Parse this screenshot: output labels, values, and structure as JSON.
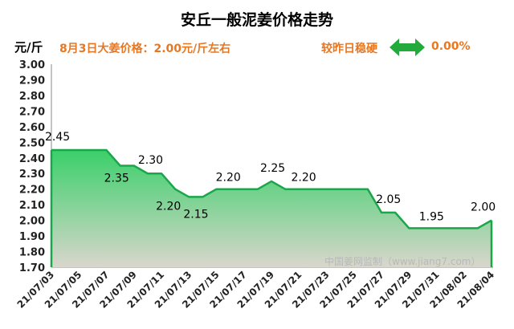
{
  "header": {
    "title": "安丘一般泥姜价格走势",
    "unit": "元/斤",
    "price_note": "8月3日大姜价格：2.00元/斤左右",
    "compare_label": "较昨日稳硬",
    "change_value": "0.00%",
    "arrow_icon": "double-arrow-icon",
    "accent_color": "#e87722",
    "arrow_color": "#22aa3c"
  },
  "watermark": "中国姜网监制（www.jiang7.com）",
  "chart_data": {
    "type": "area",
    "title": "安丘一般泥姜价格走势",
    "ylabel": "元/斤",
    "ylim": [
      1.7,
      3.0
    ],
    "yticks": [
      "1.70",
      "1.80",
      "1.90",
      "2.00",
      "2.10",
      "2.20",
      "2.30",
      "2.40",
      "2.50",
      "2.60",
      "2.70",
      "2.80",
      "2.90",
      "3.00"
    ],
    "xticks": [
      "21/07/03",
      "21/07/05",
      "21/07/07",
      "21/07/09",
      "21/07/11",
      "21/07/13",
      "21/07/15",
      "21/07/17",
      "21/07/19",
      "21/07/21",
      "21/07/23",
      "21/07/25",
      "21/07/27",
      "21/07/29",
      "21/07/31",
      "21/08/02",
      "21/08/04"
    ],
    "x": [
      "07/03",
      "07/04",
      "07/05",
      "07/06",
      "07/07",
      "07/08",
      "07/09",
      "07/10",
      "07/11",
      "07/12",
      "07/13",
      "07/14",
      "07/15",
      "07/16",
      "07/17",
      "07/18",
      "07/19",
      "07/20",
      "07/21",
      "07/22",
      "07/23",
      "07/24",
      "07/25",
      "07/26",
      "07/27",
      "07/28",
      "07/29",
      "07/30",
      "07/31",
      "08/01",
      "08/02",
      "08/03",
      "08/04"
    ],
    "values": [
      2.45,
      2.45,
      2.45,
      2.45,
      2.45,
      2.35,
      2.35,
      2.3,
      2.3,
      2.2,
      2.15,
      2.15,
      2.2,
      2.2,
      2.2,
      2.2,
      2.25,
      2.2,
      2.2,
      2.2,
      2.2,
      2.2,
      2.2,
      2.2,
      2.05,
      2.05,
      1.95,
      1.95,
      1.95,
      1.95,
      1.95,
      1.95,
      2.0
    ],
    "data_labels": [
      {
        "index": 0,
        "text": "2.45"
      },
      {
        "index": 5,
        "text": "2.35"
      },
      {
        "index": 7,
        "text": "2.30"
      },
      {
        "index": 9,
        "text": "2.20"
      },
      {
        "index": 11,
        "text": "2.15"
      },
      {
        "index": 13,
        "text": "2.20"
      },
      {
        "index": 16,
        "text": "2.25"
      },
      {
        "index": 20,
        "text": "2.20"
      },
      {
        "index": 25,
        "text": "2.05"
      },
      {
        "index": 30,
        "text": "1.95"
      },
      {
        "index": 32,
        "text": "2.00"
      }
    ],
    "line_color": "#1aa64a",
    "fill_top": "#3ad06a",
    "fill_bottom": "#d9d6cc",
    "grid": false
  }
}
